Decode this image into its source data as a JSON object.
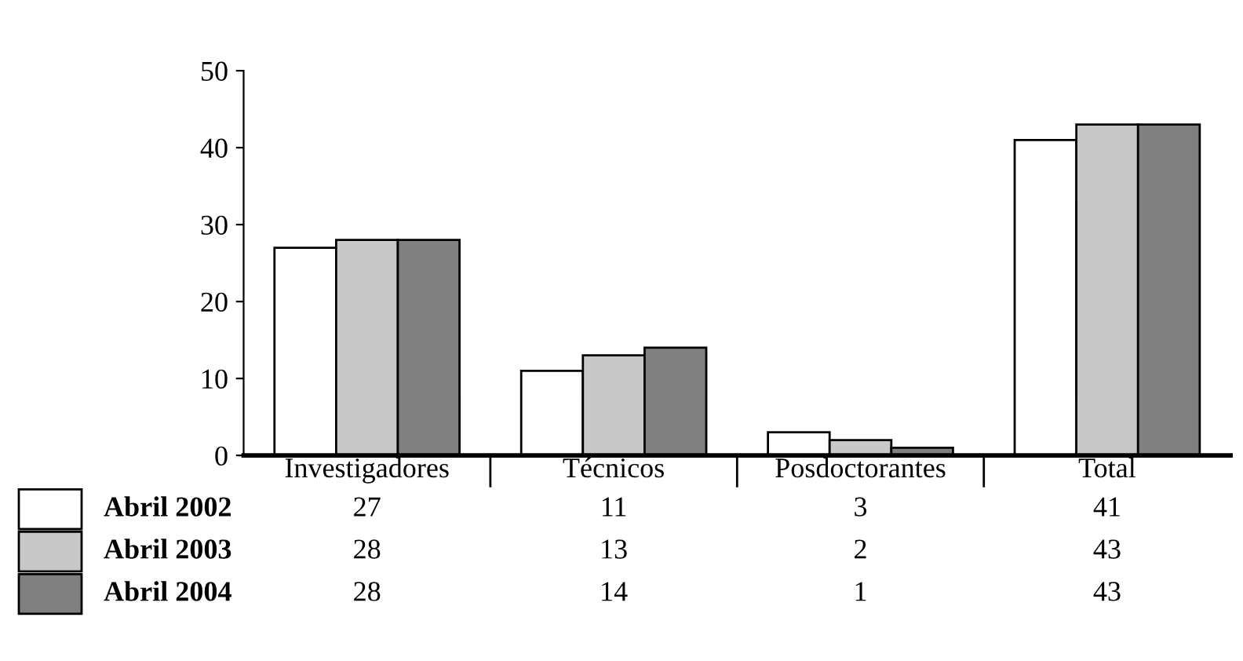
{
  "chart_data": {
    "type": "bar",
    "categories": [
      "Investigadores",
      "Técnicos",
      "Posdoctorantes",
      "Total"
    ],
    "series": [
      {
        "name": "Abril 2002",
        "color": "#ffffff",
        "values": [
          27,
          11,
          3,
          41
        ]
      },
      {
        "name": "Abril 2003",
        "color": "#c8c8c8",
        "values": [
          28,
          13,
          2,
          43
        ]
      },
      {
        "name": "Abril 2004",
        "color": "#808080",
        "values": [
          28,
          14,
          1,
          43
        ]
      }
    ],
    "ylim": [
      0,
      50
    ],
    "yticks": [
      0,
      10,
      20,
      30,
      40,
      50
    ],
    "grid": false,
    "legend": "bottom left",
    "data_labels": true
  }
}
